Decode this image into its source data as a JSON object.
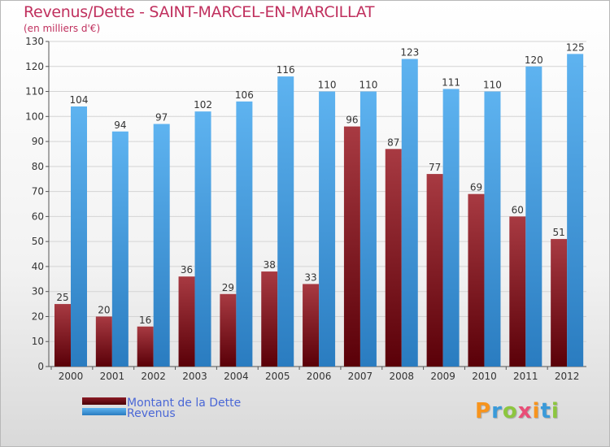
{
  "title": "Revenus/Dette - SAINT-MARCEL-EN-MARCILLAT",
  "subtitle": "(en milliers d'€)",
  "brand": {
    "text": "Proxiti",
    "letter_colors": [
      "#f7941d",
      "#3a9ad9",
      "#8dc63f",
      "#e94e77",
      "#f7941d",
      "#3a9ad9",
      "#8dc63f"
    ]
  },
  "chart_data": {
    "type": "bar",
    "categories": [
      "2000",
      "2001",
      "2002",
      "2003",
      "2004",
      "2005",
      "2006",
      "2007",
      "2008",
      "2009",
      "2010",
      "2011",
      "2012"
    ],
    "series": [
      {
        "name": "Montant de la Dette",
        "color": "#7a0f1a",
        "values": [
          25,
          20,
          16,
          36,
          29,
          38,
          33,
          96,
          87,
          77,
          69,
          60,
          51
        ]
      },
      {
        "name": "Revenus",
        "color": "#3f96dc",
        "values": [
          104,
          94,
          97,
          102,
          106,
          116,
          110,
          110,
          123,
          111,
          110,
          120,
          125
        ]
      }
    ],
    "ylim": [
      0,
      130
    ],
    "yticks": [
      0,
      10,
      20,
      30,
      40,
      50,
      60,
      70,
      80,
      90,
      100,
      110,
      120,
      130
    ],
    "grid": true,
    "legend_position": "bottom-left"
  }
}
